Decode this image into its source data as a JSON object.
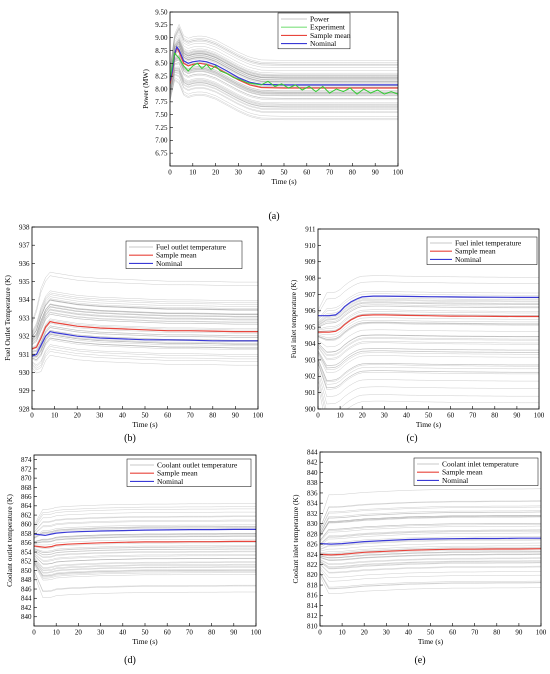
{
  "colors": {
    "ensemble": "#9a9a9a",
    "experiment": "#32cd32",
    "sample_mean": "#e8453c",
    "nominal": "#3a3ad6",
    "experiment_legend": "#7fe07f",
    "ensemble_legend": "#c8c8c8"
  },
  "chart_data": [
    {
      "panel": "(a)",
      "type": "line",
      "xlabel": "Time (s)",
      "ylabel": "Power (MW)",
      "xlim": [
        0,
        100
      ],
      "ylim": [
        6.5,
        9.5
      ],
      "xticks": [
        0,
        10,
        20,
        30,
        40,
        50,
        60,
        70,
        80,
        90,
        100
      ],
      "yticks": [
        6.75,
        7.0,
        7.25,
        7.5,
        7.75,
        8.0,
        8.25,
        8.5,
        8.75,
        9.0,
        9.25,
        9.5
      ],
      "ytick_labels": [
        "6.75",
        "7.00",
        "7.25",
        "7.50",
        "7.75",
        "8.00",
        "8.25",
        "8.50",
        "8.75",
        "9.00",
        "9.25",
        "9.50"
      ],
      "legend": [
        "Power",
        "Experiment",
        "Sample mean",
        "Nominal"
      ],
      "legend_position": "top-right",
      "ensemble": {
        "count": 60,
        "spread_low": -0.55,
        "spread_high": 0.5
      },
      "series": [
        {
          "name": "Sample mean",
          "color_key": "sample_mean",
          "x": [
            0,
            1,
            2,
            3,
            4,
            6,
            8,
            10,
            13,
            16,
            20,
            25,
            30,
            35,
            40,
            50,
            60,
            70,
            80,
            90,
            100
          ],
          "y": [
            8.1,
            8.3,
            8.65,
            8.8,
            8.72,
            8.5,
            8.45,
            8.48,
            8.5,
            8.48,
            8.42,
            8.3,
            8.18,
            8.08,
            8.03,
            8.02,
            8.02,
            8.02,
            8.02,
            8.02,
            8.02
          ]
        },
        {
          "name": "Nominal",
          "color_key": "nominal",
          "x": [
            0,
            1,
            2,
            3,
            4,
            6,
            8,
            10,
            13,
            16,
            20,
            25,
            30,
            35,
            40,
            50,
            60,
            70,
            80,
            90,
            100
          ],
          "y": [
            8.15,
            8.35,
            8.68,
            8.82,
            8.76,
            8.55,
            8.5,
            8.53,
            8.55,
            8.53,
            8.47,
            8.35,
            8.22,
            8.13,
            8.09,
            8.08,
            8.08,
            8.08,
            8.08,
            8.08,
            8.08
          ]
        },
        {
          "name": "Experiment",
          "color_key": "experiment",
          "x": [
            0,
            2,
            4,
            6,
            8,
            10,
            12,
            14,
            16,
            18,
            20,
            22,
            25,
            28,
            31,
            34,
            37,
            40,
            43,
            46,
            49,
            52,
            55,
            58,
            61,
            64,
            67,
            70,
            73,
            76,
            79,
            82,
            85,
            88,
            91,
            94,
            97,
            100
          ],
          "y": [
            8.2,
            8.7,
            8.6,
            8.45,
            8.35,
            8.45,
            8.5,
            8.4,
            8.48,
            8.38,
            8.45,
            8.35,
            8.3,
            8.22,
            8.18,
            8.12,
            8.1,
            8.08,
            8.15,
            8.05,
            8.1,
            8.02,
            8.08,
            7.98,
            8.05,
            7.95,
            8.05,
            7.92,
            8.0,
            7.95,
            8.02,
            7.9,
            8.0,
            7.92,
            7.98,
            7.9,
            7.95,
            7.9
          ]
        }
      ]
    },
    {
      "panel": "(b)",
      "type": "line",
      "xlabel": "Time (s)",
      "ylabel": "Fuel Outlet Temperature (K)",
      "xlim": [
        0,
        100
      ],
      "ylim": [
        928,
        938
      ],
      "xticks": [
        0,
        10,
        20,
        30,
        40,
        50,
        60,
        70,
        80,
        90,
        100
      ],
      "yticks": [
        928,
        929,
        930,
        931,
        932,
        933,
        934,
        935,
        936,
        937,
        938
      ],
      "ytick_labels": [
        "928",
        "929",
        "930",
        "931",
        "932",
        "933",
        "934",
        "935",
        "936",
        "937",
        "938"
      ],
      "legend": [
        "Fuel outlet temperature",
        "Sample mean",
        "Nominal"
      ],
      "legend_position": "top-right",
      "ensemble": {
        "count": 50,
        "spread_low": -1.8,
        "spread_high": 2.3
      },
      "series": [
        {
          "name": "Sample mean",
          "color_key": "sample_mean",
          "x": [
            0,
            2,
            4,
            6,
            8,
            10,
            15,
            20,
            30,
            40,
            50,
            60,
            70,
            80,
            90,
            100
          ],
          "y": [
            931.3,
            931.4,
            931.9,
            932.5,
            932.8,
            932.75,
            932.65,
            932.55,
            932.45,
            932.4,
            932.35,
            932.3,
            932.3,
            932.28,
            932.25,
            932.25
          ]
        },
        {
          "name": "Nominal",
          "color_key": "nominal",
          "x": [
            0,
            2,
            4,
            6,
            8,
            10,
            15,
            20,
            30,
            40,
            50,
            60,
            70,
            80,
            90,
            100
          ],
          "y": [
            930.9,
            931.0,
            931.5,
            932.0,
            932.25,
            932.2,
            932.1,
            932.0,
            931.9,
            931.85,
            931.8,
            931.8,
            931.78,
            931.75,
            931.75,
            931.75
          ]
        }
      ]
    },
    {
      "panel": "(c)",
      "type": "line",
      "xlabel": "Time (s)",
      "ylabel": "Fuel inlet temperature (K)",
      "xlim": [
        0,
        100
      ],
      "ylim": [
        900,
        911
      ],
      "xticks": [
        0,
        10,
        20,
        30,
        40,
        50,
        60,
        70,
        80,
        90,
        100
      ],
      "yticks": [
        900,
        901,
        902,
        903,
        904,
        905,
        906,
        907,
        908,
        909,
        910,
        911
      ],
      "ytick_labels": [
        "900",
        "901",
        "902",
        "903",
        "904",
        "905",
        "906",
        "907",
        "908",
        "909",
        "910",
        "911"
      ],
      "legend": [
        "Fuel inlet temperature",
        "Sample mean",
        "Nominal"
      ],
      "legend_position": "top-right",
      "ensemble": {
        "count": 50,
        "spread_low": -4.5,
        "spread_high": 2.3
      },
      "series": [
        {
          "name": "Sample mean",
          "color_key": "sample_mean",
          "x": [
            0,
            5,
            8,
            10,
            12,
            15,
            18,
            20,
            25,
            30,
            40,
            50,
            60,
            70,
            80,
            90,
            100
          ],
          "y": [
            904.7,
            904.7,
            904.75,
            904.9,
            905.15,
            905.45,
            905.65,
            905.72,
            905.75,
            905.75,
            905.72,
            905.7,
            905.68,
            905.67,
            905.66,
            905.65,
            905.65
          ]
        },
        {
          "name": "Nominal",
          "color_key": "nominal",
          "x": [
            0,
            5,
            8,
            10,
            12,
            15,
            18,
            20,
            25,
            30,
            40,
            50,
            60,
            70,
            80,
            90,
            100
          ],
          "y": [
            905.7,
            905.7,
            905.75,
            905.95,
            906.25,
            906.55,
            906.75,
            906.85,
            906.9,
            906.9,
            906.88,
            906.86,
            906.85,
            906.84,
            906.83,
            906.82,
            906.82
          ]
        }
      ]
    },
    {
      "panel": "(d)",
      "type": "line",
      "xlabel": "Time (s)",
      "ylabel": "Coolant outlet temperature (K)",
      "xlim": [
        0,
        100
      ],
      "ylim": [
        838,
        875
      ],
      "xticks": [
        0,
        10,
        20,
        30,
        40,
        50,
        60,
        70,
        80,
        90,
        100
      ],
      "yticks": [
        840,
        842,
        844,
        846,
        848,
        850,
        852,
        854,
        856,
        858,
        860,
        862,
        864,
        866,
        868,
        870,
        872,
        874
      ],
      "ytick_labels": [
        "840",
        "842",
        "844",
        "846",
        "848",
        "850",
        "852",
        "854",
        "856",
        "858",
        "860",
        "862",
        "864",
        "866",
        "868",
        "870",
        "872",
        "874"
      ],
      "legend": [
        "Coolant outlet temperature",
        "Sample mean",
        "Nominal"
      ],
      "legend_position": "top-right",
      "ensemble": {
        "count": 50,
        "spread_low": -9,
        "spread_high": 7
      },
      "series": [
        {
          "name": "Sample mean",
          "color_key": "sample_mean",
          "x": [
            0,
            5,
            8,
            10,
            15,
            20,
            30,
            40,
            50,
            60,
            70,
            80,
            90,
            100
          ],
          "y": [
            855.3,
            855.0,
            855.2,
            855.5,
            855.7,
            855.8,
            856.0,
            856.1,
            856.2,
            856.2,
            856.25,
            856.25,
            856.3,
            856.3
          ]
        },
        {
          "name": "Nominal",
          "color_key": "nominal",
          "x": [
            0,
            5,
            8,
            10,
            15,
            20,
            30,
            40,
            50,
            60,
            70,
            80,
            90,
            100
          ],
          "y": [
            857.9,
            857.6,
            857.9,
            858.1,
            858.3,
            858.4,
            858.55,
            858.65,
            858.75,
            858.8,
            858.85,
            858.85,
            858.9,
            858.9
          ]
        }
      ]
    },
    {
      "panel": "(e)",
      "type": "line",
      "xlabel": "Time (s)",
      "ylabel": "Coolant inlet temperature (K)",
      "xlim": [
        0,
        100
      ],
      "ylim": [
        810,
        844
      ],
      "xticks": [
        0,
        10,
        20,
        30,
        40,
        50,
        60,
        70,
        80,
        90,
        100
      ],
      "yticks": [
        810,
        812,
        814,
        816,
        818,
        820,
        822,
        824,
        826,
        828,
        830,
        832,
        834,
        836,
        838,
        840,
        842,
        844
      ],
      "ytick_labels": [
        "810",
        "812",
        "814",
        "816",
        "818",
        "820",
        "822",
        "824",
        "826",
        "828",
        "830",
        "832",
        "834",
        "836",
        "838",
        "840",
        "842",
        "844"
      ],
      "legend": [
        "Coolant inlet temperature",
        "Sample mean",
        "Nominal"
      ],
      "legend_position": "top-right",
      "ensemble": {
        "count": 50,
        "spread_low": -7.5,
        "spread_high": 10
      },
      "series": [
        {
          "name": "Sample mean",
          "color_key": "sample_mean",
          "x": [
            0,
            5,
            10,
            15,
            20,
            30,
            40,
            50,
            60,
            70,
            80,
            90,
            100
          ],
          "y": [
            824.0,
            823.9,
            824.0,
            824.2,
            824.4,
            824.6,
            824.8,
            824.9,
            825.0,
            825.0,
            825.05,
            825.05,
            825.1
          ]
        },
        {
          "name": "Nominal",
          "color_key": "nominal",
          "x": [
            0,
            5,
            10,
            15,
            20,
            30,
            40,
            50,
            60,
            70,
            80,
            90,
            100
          ],
          "y": [
            826.1,
            826.0,
            826.1,
            826.3,
            826.5,
            826.7,
            826.9,
            827.0,
            827.05,
            827.1,
            827.1,
            827.15,
            827.15
          ]
        }
      ]
    }
  ]
}
